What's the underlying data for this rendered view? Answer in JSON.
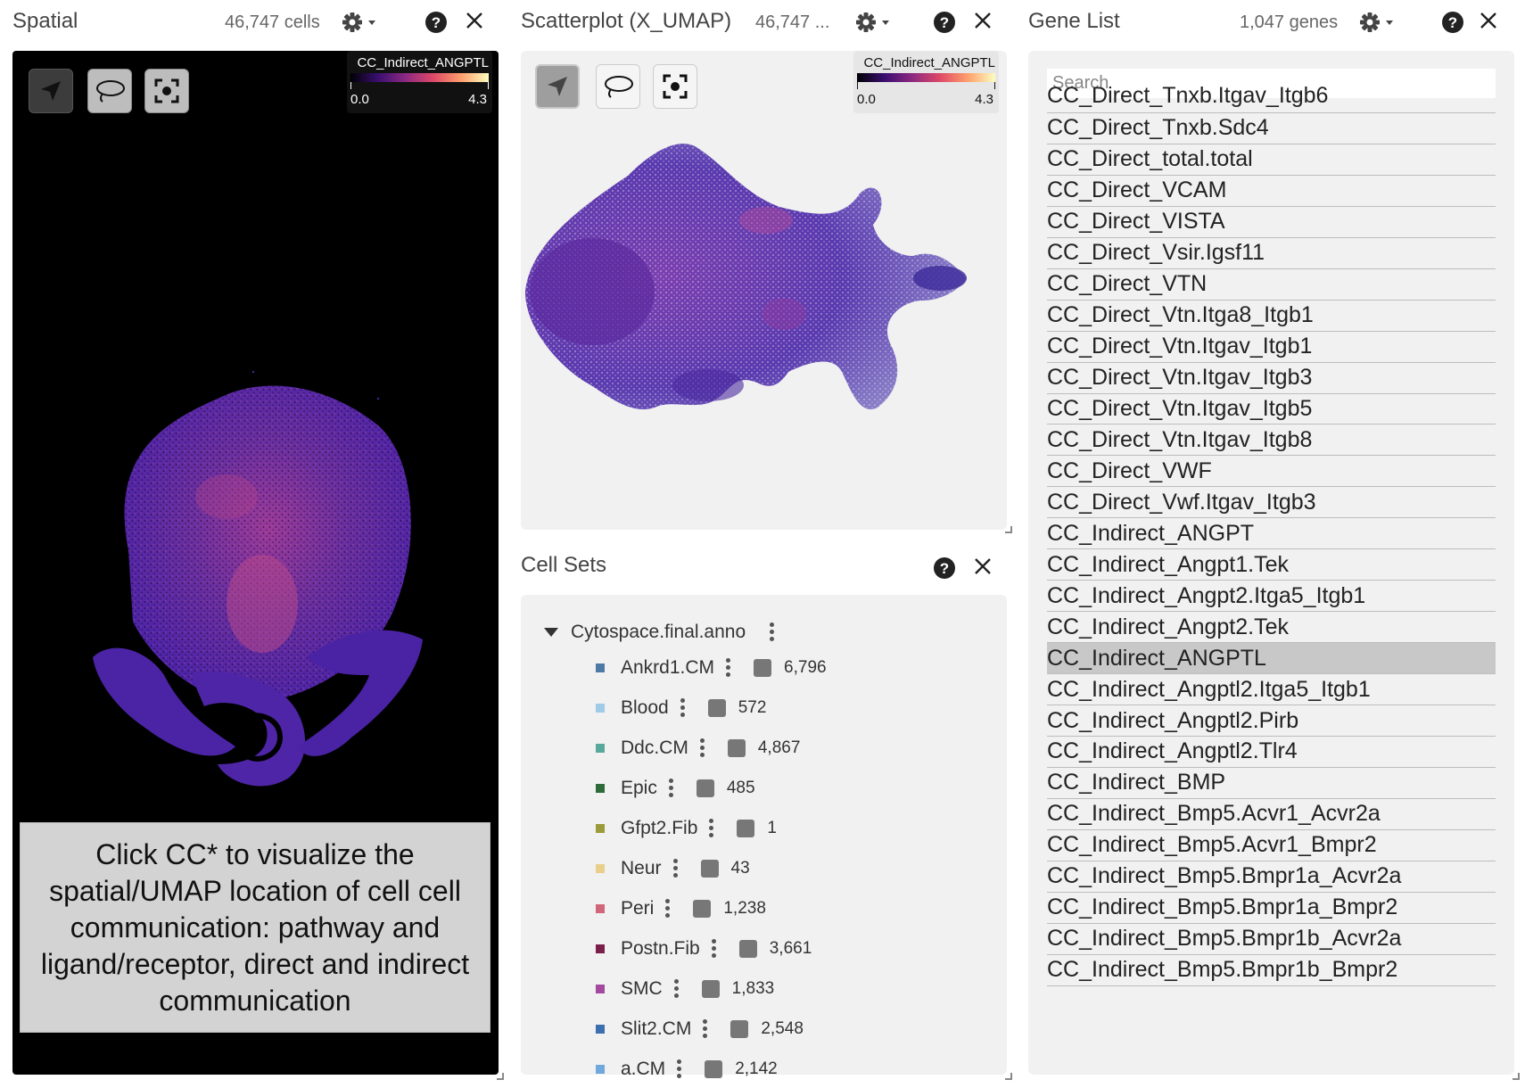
{
  "spatial": {
    "title": "Spatial",
    "count": "46,747 cells",
    "legend": {
      "gene": "CC_Indirect_ANGPTL",
      "min": "0.0",
      "max": "4.3"
    },
    "instruction": "Click CC* to visualize the spatial/UMAP location of cell cell communication: pathway and ligand/receptor, direct and indirect communication"
  },
  "scatter": {
    "title": "Scatterplot (X_UMAP)",
    "count": "46,747 ...",
    "legend": {
      "gene": "CC_Indirect_ANGPTL",
      "min": "0.0",
      "max": "4.3"
    }
  },
  "cellsets": {
    "title": "Cell Sets",
    "root": "Cytospace.final.anno",
    "items": [
      {
        "name": "Ankrd1.CM",
        "count": "6,796",
        "color": "#4e79a7"
      },
      {
        "name": "Blood",
        "count": "572",
        "color": "#a0cbe8"
      },
      {
        "name": "Ddc.CM",
        "count": "4,867",
        "color": "#59a89c"
      },
      {
        "name": "Epic",
        "count": "485",
        "color": "#2e6b3a"
      },
      {
        "name": "Gfpt2.Fib",
        "count": "1",
        "color": "#9c9a3a"
      },
      {
        "name": "Neur",
        "count": "43",
        "color": "#e8d08c"
      },
      {
        "name": "Peri",
        "count": "1,238",
        "color": "#d0667a"
      },
      {
        "name": "Postn.Fib",
        "count": "3,661",
        "color": "#7a1f4a"
      },
      {
        "name": "SMC",
        "count": "1,833",
        "color": "#a34aa0"
      },
      {
        "name": "Slit2.CM",
        "count": "2,548",
        "color": "#3c6fb0"
      },
      {
        "name": "a.CM",
        "count": "2,142",
        "color": "#6fa8dc"
      }
    ]
  },
  "genes": {
    "title": "Gene List",
    "count": "1,047 genes",
    "search_placeholder": "Search",
    "partial_top": "CC_Direct_Tnxb.Itgav_Itgb6",
    "items": [
      "CC_Direct_Tnxb.Sdc4",
      "CC_Direct_total.total",
      "CC_Direct_VCAM",
      "CC_Direct_VISTA",
      "CC_Direct_Vsir.Igsf11",
      "CC_Direct_VTN",
      "CC_Direct_Vtn.Itga8_Itgb1",
      "CC_Direct_Vtn.Itgav_Itgb1",
      "CC_Direct_Vtn.Itgav_Itgb3",
      "CC_Direct_Vtn.Itgav_Itgb5",
      "CC_Direct_Vtn.Itgav_Itgb8",
      "CC_Direct_VWF",
      "CC_Direct_Vwf.Itgav_Itgb3",
      "CC_Indirect_ANGPT",
      "CC_Indirect_Angpt1.Tek",
      "CC_Indirect_Angpt2.Itga5_Itgb1",
      "CC_Indirect_Angpt2.Tek",
      "CC_Indirect_ANGPTL",
      "CC_Indirect_Angptl2.Itga5_Itgb1",
      "CC_Indirect_Angptl2.Pirb",
      "CC_Indirect_Angptl2.Tlr4",
      "CC_Indirect_BMP",
      "CC_Indirect_Bmp5.Acvr1_Acvr2a",
      "CC_Indirect_Bmp5.Acvr1_Bmpr2",
      "CC_Indirect_Bmp5.Bmpr1a_Acvr2a",
      "CC_Indirect_Bmp5.Bmpr1a_Bmpr2",
      "CC_Indirect_Bmp5.Bmpr1b_Acvr2a",
      "CC_Indirect_Bmp5.Bmpr1b_Bmpr2"
    ],
    "selected": "CC_Indirect_ANGPTL"
  }
}
